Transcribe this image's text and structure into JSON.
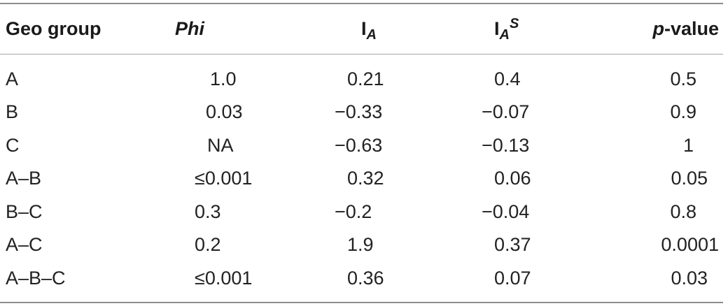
{
  "table": {
    "headers": {
      "group": "Geo group",
      "phi": "Phi",
      "ia_base": "I",
      "ia_sub": "A",
      "ias_base": "I",
      "ias_sub": "A",
      "ias_sup": "S",
      "pvalue_italic": "p",
      "pvalue_rest": "-value"
    },
    "rows": [
      {
        "group": "A",
        "phi": "1.0",
        "ia": "0.21",
        "ias": "0.4",
        "pvalue": "0.5"
      },
      {
        "group": "B",
        "phi": "0.03",
        "ia": "−0.33",
        "ias": "−0.07",
        "pvalue": "0.9"
      },
      {
        "group": "C",
        "phi": "NA",
        "ia": "−0.63",
        "ias": "−0.13",
        "pvalue": "1"
      },
      {
        "group": "A–B",
        "phi": "≤0.001",
        "ia": "0.32",
        "ias": "0.06",
        "pvalue": "0.05"
      },
      {
        "group": "B–C",
        "phi": "0.3",
        "ia": "−0.2",
        "ias": "−0.04",
        "pvalue": "0.8"
      },
      {
        "group": "A–C",
        "phi": "0.2",
        "ia": "1.9",
        "ias": "0.37",
        "pvalue": "0.0001"
      },
      {
        "group": "A–B–C",
        "phi": "≤0.001",
        "ia": "0.36",
        "ias": "0.07",
        "pvalue": "0.03"
      }
    ]
  }
}
